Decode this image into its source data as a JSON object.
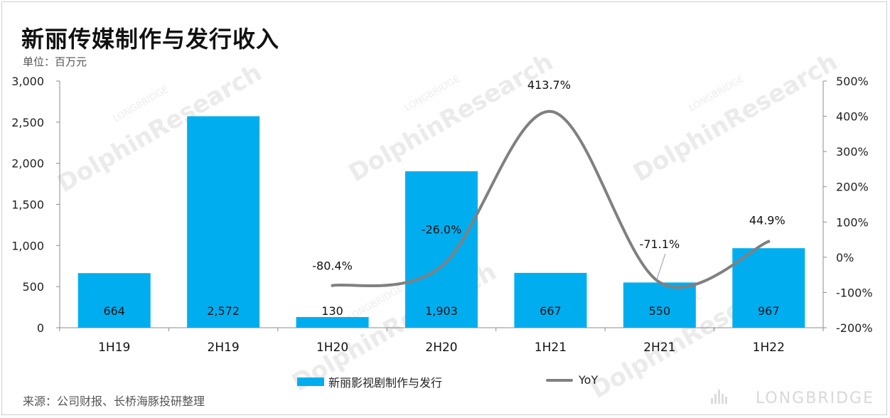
{
  "title": "新丽传媒制作与发行收入",
  "unit": "单位：百万元",
  "source": "来源：公司财报、长桥海豚投研整理",
  "brand": "LONGBRIDGE",
  "watermark": "DolphinResearch",
  "watermark_small": "LONGBRIDGE",
  "colors": {
    "bar": "#00aeef",
    "line": "#808080",
    "axis": "#8c8c8c"
  },
  "chart_data": {
    "type": "bar",
    "categories": [
      "1H19",
      "2H19",
      "1H20",
      "2H20",
      "1H21",
      "2H21",
      "1H22"
    ],
    "series": [
      {
        "name": "新丽影视剧制作与发行",
        "type": "bar",
        "axis": "left",
        "values": [
          664,
          2572,
          130,
          1903,
          667,
          550,
          967
        ],
        "labels": [
          "664",
          "2,572",
          "130",
          "1,903",
          "667",
          "550",
          "967"
        ]
      },
      {
        "name": "YoY",
        "type": "line",
        "axis": "right",
        "smooth": true,
        "values": [
          null,
          null,
          -80.4,
          -26.0,
          413.7,
          -71.1,
          44.9
        ],
        "labels": [
          "",
          "",
          "-80.4%",
          "-26.0%",
          "413.7%",
          "-71.1%",
          "44.9%"
        ]
      }
    ],
    "y_left": {
      "min": 0,
      "max": 3000,
      "ticks": [
        0,
        500,
        1000,
        1500,
        2000,
        2500,
        3000
      ],
      "tick_labels": [
        "0",
        "500",
        "1,000",
        "1,500",
        "2,000",
        "2,500",
        "3,000"
      ]
    },
    "y_right": {
      "min": -200,
      "max": 500,
      "ticks": [
        -200,
        -100,
        0,
        100,
        200,
        300,
        400,
        500
      ],
      "tick_labels": [
        "-200%",
        "-100%",
        "0%",
        "100%",
        "200%",
        "300%",
        "400%",
        "500%"
      ]
    },
    "grid": false,
    "legend_position": "bottom"
  }
}
